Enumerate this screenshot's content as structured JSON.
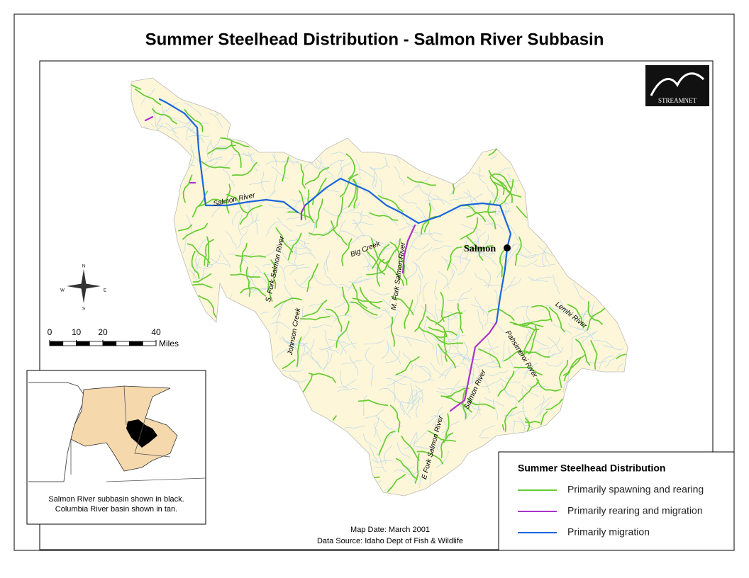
{
  "title": "Summer Steelhead Distribution - Salmon River Subbasin",
  "logo": "STREAMNET",
  "city": "Salmon",
  "river_labels": [
    "Salmon River",
    "S. Fork Salmon River",
    "Johnson Creek",
    "Big Creek",
    "M. Fork Salmon River",
    "Lemhi River",
    "Pahsimeroi River",
    "Salmon River",
    "E Fork Salmon River"
  ],
  "compass": [
    "N",
    "E",
    "S",
    "W"
  ],
  "scale_bar": {
    "ticks": [
      0,
      10,
      20,
      40
    ],
    "unit": "Miles"
  },
  "inset_caption": [
    "Salmon River subbasin shown in black.",
    "Columbia River basin shown in tan."
  ],
  "legend": {
    "title": "Summer Steelhead Distribution",
    "items": [
      {
        "label": "Primarily spawning and rearing",
        "color": "#66cc33"
      },
      {
        "label": "Primarily rearing and migration",
        "color": "#aa33cc"
      },
      {
        "label": "Primarily migration",
        "color": "#1a66dd"
      }
    ]
  },
  "footer": [
    "Map Date: March 2001",
    "Data Source: Idaho Dept of Fish & Wildlife"
  ]
}
